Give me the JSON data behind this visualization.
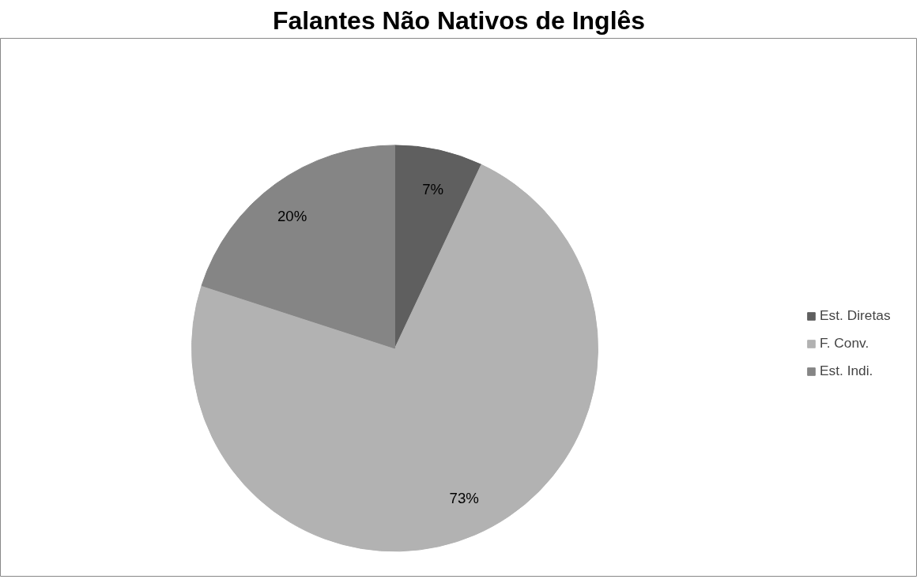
{
  "chart_data": {
    "type": "pie",
    "title": "Falantes Não Nativos de Inglês",
    "categories": [
      "Est. Diretas",
      "F. Conv.",
      "Est. Indi."
    ],
    "values": [
      7,
      73,
      20
    ],
    "colors": [
      "#5f5f5f",
      "#b2b2b2",
      "#858585"
    ],
    "value_labels": [
      "7%",
      "73%",
      "20%"
    ],
    "legend": "right"
  }
}
